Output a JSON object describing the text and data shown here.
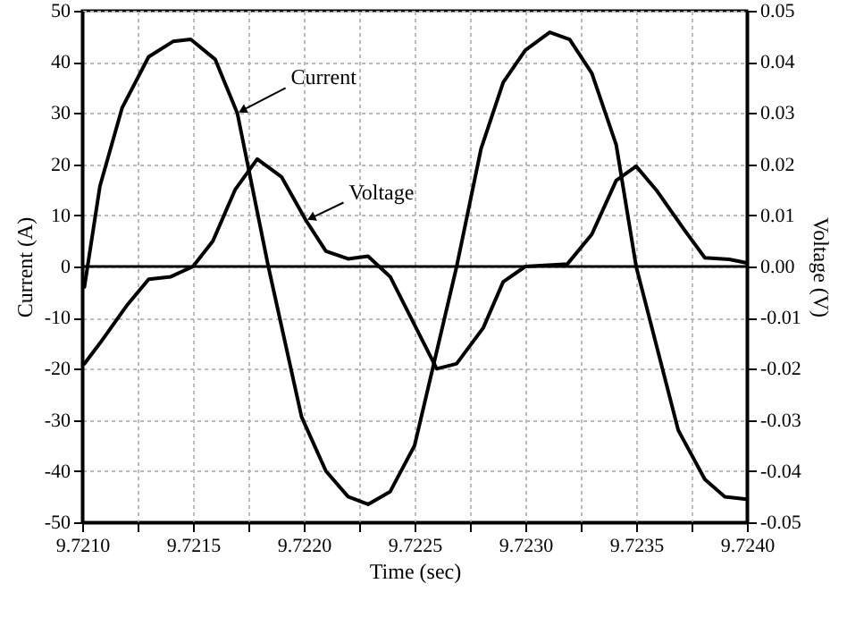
{
  "chart_data": {
    "type": "line",
    "xlabel": "Time (sec)",
    "ylabel": "Current (A)",
    "y2label": "Voltage (V)",
    "xlim": [
      9.721,
      9.724
    ],
    "xticks": [
      {
        "value": 9.721,
        "label": "9.7210"
      },
      {
        "value": 9.72125,
        "label": null
      },
      9.7215,
      {
        "value": 9.72175,
        "label": null
      },
      {
        "value": 9.722,
        "label": "9.7220"
      },
      {
        "value": 9.72225,
        "label": null
      },
      9.7225,
      {
        "value": 9.72275,
        "label": null
      },
      {
        "value": 9.723,
        "label": "9.7230"
      },
      {
        "value": 9.72325,
        "label": null
      },
      9.7235,
      {
        "value": 9.72375,
        "label": null
      },
      {
        "value": 9.724,
        "label": "9.7240"
      }
    ],
    "ylim": [
      -50,
      50
    ],
    "yticks": [
      -50,
      -40,
      -30,
      -20,
      -10,
      0,
      10,
      20,
      30,
      40,
      50
    ],
    "y2lim": [
      -0.05,
      0.05
    ],
    "y2ticks": [
      -0.05,
      -0.04,
      -0.03,
      -0.02,
      -0.01,
      {
        "value": 0,
        "label": "0.00"
      },
      0.01,
      0.02,
      0.03,
      0.04,
      0.05
    ],
    "grid": true,
    "line_style": "solid",
    "ref_lines": [
      {
        "axis": "y",
        "value": 0,
        "color": "#000000"
      }
    ],
    "series": [
      {
        "name": "Current",
        "color": "#000000",
        "x": [
          9.72101,
          9.72108,
          9.72118,
          9.7213,
          9.72141,
          9.72149,
          9.7216,
          9.7217,
          9.72184,
          9.72199,
          9.7221,
          9.7222,
          9.72229,
          9.72239,
          9.7225,
          9.72269,
          9.7228,
          9.7229,
          9.723,
          9.72311,
          9.7232,
          9.7233,
          9.72341,
          9.7235,
          9.72369,
          9.72381,
          9.7239,
          9.724
        ],
        "values": [
          -4,
          15.7,
          31,
          41,
          44,
          44.4,
          40.5,
          30,
          0,
          -29.4,
          -40,
          -45,
          -46.5,
          -44,
          -35,
          0,
          23,
          36,
          42.3,
          45.8,
          44.4,
          37.8,
          23.8,
          0,
          -32,
          -41.6,
          -45,
          -45.5
        ]
      },
      {
        "name": "Voltage",
        "color": "#000000",
        "axis": "y2",
        "x": [
          9.72101,
          9.72108,
          9.7212,
          9.7213,
          9.7214,
          9.7215,
          9.72159,
          9.72169,
          9.72179,
          9.7219,
          9.72201,
          9.7221,
          9.7222,
          9.72229,
          9.72239,
          9.7226,
          9.72269,
          9.72281,
          9.7229,
          9.723,
          9.72319,
          9.7233,
          9.72341,
          9.7235,
          9.72359,
          9.72372,
          9.72381,
          9.72392,
          9.724
        ],
        "values": [
          -0.019,
          -0.015,
          -0.0077,
          -0.0025,
          -0.002,
          0,
          0.005,
          0.015,
          0.021,
          0.0175,
          0.009,
          0.003,
          0.0015,
          0.002,
          -0.002,
          -0.02,
          -0.019,
          -0.012,
          -0.003,
          0,
          0.0005,
          0.0063,
          0.0168,
          0.0196,
          0.015,
          0.007,
          0.0017,
          0.0014,
          0.0007
        ]
      }
    ]
  }
}
